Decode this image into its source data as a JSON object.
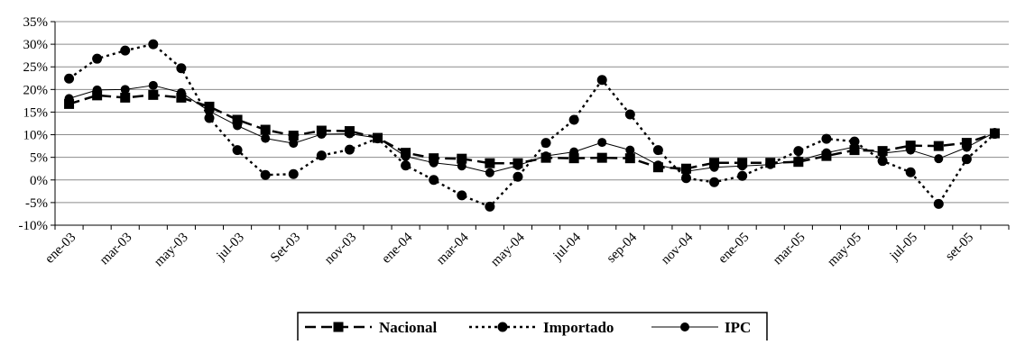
{
  "chart_data": {
    "type": "line",
    "title": "",
    "xlabel": "",
    "ylabel": "",
    "ylim": [
      -10,
      35
    ],
    "y_ticks": [
      -10,
      -5,
      0,
      5,
      10,
      15,
      20,
      25,
      30,
      35
    ],
    "y_tick_labels": [
      "-10%",
      "-5%",
      "0%",
      "5%",
      "10%",
      "15%",
      "20%",
      "25%",
      "30%",
      "35%"
    ],
    "grid": true,
    "legend_position": "bottom-center",
    "x": [
      "ene-03",
      "feb-03",
      "mar-03",
      "abr-03",
      "may-03",
      "jun-03",
      "jul-03",
      "ago-03",
      "Set-03",
      "oct-03",
      "nov-03",
      "dic-03",
      "ene-04",
      "feb-04",
      "mar-04",
      "abr-04",
      "may-04",
      "jun-04",
      "jul-04",
      "ago-04",
      "sep-04",
      "oct-04",
      "nov-04",
      "dic-04",
      "ene-05",
      "feb-05",
      "mar-05",
      "abr-05",
      "may-05",
      "jun-05",
      "jul-05",
      "ago-05",
      "set-05",
      "oct-05"
    ],
    "x_tick_labels": [
      "ene-03",
      "mar-03",
      "may-03",
      "jul-03",
      "Set-03",
      "nov-03",
      "ene-04",
      "mar-04",
      "may-04",
      "jul-04",
      "sep-04",
      "nov-04",
      "ene-05",
      "mar-05",
      "may-05",
      "jul-05",
      "set-05"
    ],
    "series": [
      {
        "name": "Nacional",
        "color": "#000000",
        "line": "long-dash",
        "marker": "square",
        "values": [
          16.8,
          18.7,
          18.2,
          18.8,
          18.2,
          16.2,
          13.3,
          11.1,
          9.8,
          10.9,
          10.8,
          9.3,
          6.0,
          4.8,
          4.7,
          3.7,
          3.7,
          4.9,
          4.8,
          4.9,
          4.8,
          2.8,
          2.5,
          3.8,
          3.8,
          3.8,
          4.0,
          5.3,
          6.6,
          6.4,
          7.6,
          7.5,
          8.2,
          10.3
        ]
      },
      {
        "name": "Importado",
        "color": "#000000",
        "line": "dotted",
        "marker": "circle",
        "values": [
          22.4,
          26.8,
          28.6,
          30.0,
          24.7,
          13.7,
          6.6,
          1.1,
          1.3,
          5.4,
          6.7,
          9.2,
          3.2,
          0.0,
          -3.4,
          -5.9,
          0.7,
          8.2,
          13.3,
          22.1,
          14.5,
          6.6,
          0.4,
          -0.5,
          0.9,
          3.6,
          6.4,
          9.1,
          8.5,
          4.2,
          1.7,
          -5.3,
          4.6,
          10.2
        ]
      },
      {
        "name": "IPC",
        "color": "#000000",
        "line": "solid",
        "marker": "circle",
        "values": [
          18.0,
          19.9,
          20.0,
          20.9,
          19.3,
          15.2,
          12.0,
          9.2,
          8.1,
          10.1,
          10.2,
          9.3,
          5.2,
          3.8,
          3.1,
          1.6,
          3.2,
          5.3,
          6.2,
          8.3,
          6.6,
          3.3,
          1.9,
          2.8,
          3.1,
          3.4,
          4.3,
          6.0,
          7.3,
          5.9,
          6.6,
          4.7,
          7.2,
          10.5
        ]
      }
    ]
  }
}
